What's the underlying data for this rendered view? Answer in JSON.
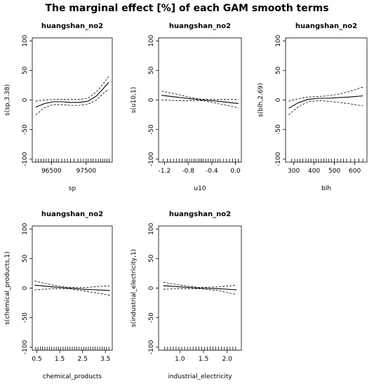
{
  "main_title": "The marginal effect [%] of each GAM smooth terms",
  "chart_data": [
    {
      "type": "line",
      "title": "huangshan_no2",
      "xlabel": "sp",
      "ylabel": "s(sp,3.38)",
      "xlim": [
        95950,
        98250
      ],
      "ylim": [
        -105,
        105
      ],
      "xticks": [
        {
          "v": 96500,
          "label": "96500"
        },
        {
          "v": 97500,
          "label": "97500"
        }
      ],
      "yticks": [
        {
          "v": -100,
          "label": "-100"
        },
        {
          "v": -50,
          "label": "-50"
        },
        {
          "v": 0,
          "label": "0"
        },
        {
          "v": 50,
          "label": "50"
        },
        {
          "v": 100,
          "label": "100"
        }
      ],
      "x": [
        96050,
        96300,
        96550,
        96800,
        97050,
        97300,
        97550,
        97800,
        98000,
        98150
      ],
      "fit": [
        -12,
        -6,
        -3,
        -3,
        -4,
        -4,
        -2,
        7,
        20,
        30
      ],
      "upper": [
        -2,
        0,
        1,
        1,
        1,
        1,
        3,
        14,
        28,
        40
      ],
      "lower": [
        -25,
        -13,
        -8,
        -8,
        -9,
        -9,
        -7,
        0,
        12,
        18
      ],
      "rug": [
        96050,
        96120,
        96200,
        96280,
        96350,
        96420,
        96500,
        96560,
        96640,
        96700,
        96800,
        96880,
        96960,
        97050,
        97150,
        97260,
        97340,
        97420,
        97500,
        97560,
        97640,
        97700,
        97780,
        97850,
        97920,
        97980,
        98040,
        98100,
        98160
      ]
    },
    {
      "type": "line",
      "title": "huangshan_no2",
      "xlabel": "u10",
      "ylabel": "s(u10,1)",
      "xlim": [
        -1.3,
        0.1
      ],
      "ylim": [
        -105,
        105
      ],
      "xticks": [
        {
          "v": -1.2,
          "label": "-1.2"
        },
        {
          "v": -0.8,
          "label": "-0.8"
        },
        {
          "v": -0.4,
          "label": "-0.4"
        },
        {
          "v": 0.0,
          "label": "0.0"
        }
      ],
      "yticks": [
        {
          "v": -100,
          "label": "-100"
        },
        {
          "v": -50,
          "label": "-50"
        },
        {
          "v": 0,
          "label": "0"
        },
        {
          "v": 50,
          "label": "50"
        },
        {
          "v": 100,
          "label": "100"
        }
      ],
      "x": [
        -1.25,
        -1.0,
        -0.75,
        -0.55,
        -0.3,
        0.05
      ],
      "fit": [
        8,
        5,
        2,
        0,
        -2,
        -6
      ],
      "upper": [
        15,
        10,
        4,
        1,
        1,
        1
      ],
      "lower": [
        0,
        -1,
        -1,
        -1,
        -6,
        -13
      ],
      "rug": [
        -1.22,
        -1.15,
        -1.1,
        -1.05,
        -1.0,
        -0.95,
        -0.9,
        -0.85,
        -0.82,
        -0.78,
        -0.74,
        -0.7,
        -0.67,
        -0.63,
        -0.6,
        -0.57,
        -0.54,
        -0.5,
        -0.46,
        -0.42,
        -0.38,
        -0.34,
        -0.3,
        -0.26,
        -0.2,
        -0.15,
        -0.1,
        -0.05,
        0.0,
        0.05
      ]
    },
    {
      "type": "line",
      "title": "huangshan_no2",
      "xlabel": "blh",
      "ylabel": "s(blh,2.69)",
      "xlim": [
        260,
        660
      ],
      "ylim": [
        -105,
        105
      ],
      "xticks": [
        {
          "v": 300,
          "label": "300"
        },
        {
          "v": 400,
          "label": "400"
        },
        {
          "v": 500,
          "label": "500"
        },
        {
          "v": 600,
          "label": "600"
        }
      ],
      "yticks": [
        {
          "v": -100,
          "label": "-100"
        },
        {
          "v": -50,
          "label": "-50"
        },
        {
          "v": 0,
          "label": "0"
        },
        {
          "v": 50,
          "label": "50"
        },
        {
          "v": 100,
          "label": "100"
        }
      ],
      "x": [
        275,
        320,
        370,
        420,
        470,
        520,
        570,
        640
      ],
      "fit": [
        -14,
        -5,
        1,
        3,
        3,
        4,
        5,
        7
      ],
      "upper": [
        -2,
        2,
        5,
        6,
        7,
        10,
        14,
        22
      ],
      "lower": [
        -25,
        -12,
        -3,
        -1,
        -2,
        -4,
        -6,
        -10
      ],
      "rug": [
        290,
        305,
        318,
        330,
        345,
        360,
        372,
        385,
        398,
        410,
        422,
        435,
        448,
        460,
        472,
        485,
        500,
        515,
        530,
        545,
        560,
        580,
        600,
        620,
        640
      ]
    },
    {
      "type": "line",
      "title": "huangshan_no2",
      "xlabel": "chemical_products",
      "ylabel": "s(chemical_products,1)",
      "xlim": [
        0.3,
        3.8
      ],
      "ylim": [
        -105,
        105
      ],
      "xticks": [
        {
          "v": 0.5,
          "label": "0.5"
        },
        {
          "v": 1.5,
          "label": "1.5"
        },
        {
          "v": 2.5,
          "label": "2.5"
        },
        {
          "v": 3.5,
          "label": "3.5"
        }
      ],
      "yticks": [
        {
          "v": -100,
          "label": "-100"
        },
        {
          "v": -50,
          "label": "-50"
        },
        {
          "v": 0,
          "label": "0"
        },
        {
          "v": 50,
          "label": "50"
        },
        {
          "v": 100,
          "label": "100"
        }
      ],
      "x": [
        0.4,
        1.2,
        1.9,
        2.6,
        3.7
      ],
      "fit": [
        5,
        2,
        0,
        -2,
        -4
      ],
      "upper": [
        12,
        5,
        1,
        1,
        4
      ],
      "lower": [
        -3,
        -1,
        -1,
        -5,
        -12
      ],
      "rug": [
        0.45,
        0.55,
        0.65,
        0.75,
        0.85,
        0.95,
        1.05,
        1.15,
        1.25,
        1.35,
        1.45,
        1.55,
        1.65,
        1.75,
        1.85,
        1.95,
        2.05,
        2.15,
        2.25,
        2.35,
        2.45,
        2.55,
        2.65,
        2.75,
        2.85,
        2.95,
        3.05,
        3.15,
        3.25,
        3.35,
        3.45,
        3.55,
        3.65
      ]
    },
    {
      "type": "line",
      "title": "huangshan_no2",
      "xlabel": "industrial_electricity",
      "ylabel": "s(industrial_electricity,1)",
      "xlim": [
        0.55,
        2.3
      ],
      "ylim": [
        -105,
        105
      ],
      "xticks": [
        {
          "v": 1.0,
          "label": "1.0"
        },
        {
          "v": 1.5,
          "label": "1.5"
        },
        {
          "v": 2.0,
          "label": "2.0"
        }
      ],
      "yticks": [
        {
          "v": -100,
          "label": "-100"
        },
        {
          "v": -50,
          "label": "-50"
        },
        {
          "v": 0,
          "label": "0"
        },
        {
          "v": 50,
          "label": "50"
        },
        {
          "v": 100,
          "label": "100"
        }
      ],
      "x": [
        0.65,
        1.0,
        1.4,
        1.8,
        2.2
      ],
      "fit": [
        4,
        2,
        0,
        -1,
        -3
      ],
      "upper": [
        10,
        5,
        1,
        2,
        5
      ],
      "lower": [
        -2,
        -1,
        -1,
        -4,
        -11
      ],
      "rug": [
        0.68,
        0.74,
        0.8,
        0.86,
        0.92,
        0.98,
        1.04,
        1.1,
        1.16,
        1.22,
        1.28,
        1.34,
        1.4,
        1.46,
        1.52,
        1.58,
        1.64,
        1.7,
        1.76,
        1.82,
        1.88,
        1.94,
        2.0,
        2.06,
        2.12,
        2.18
      ]
    }
  ]
}
